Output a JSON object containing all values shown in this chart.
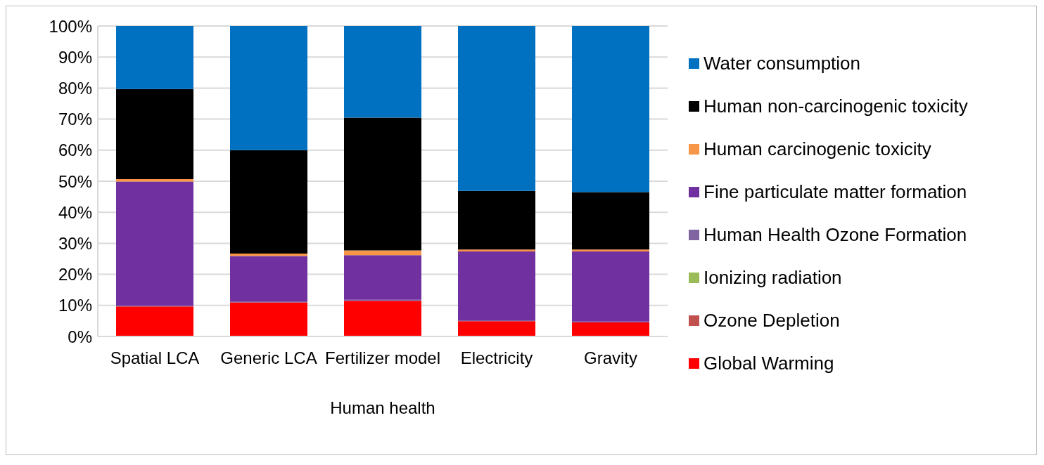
{
  "chart_data": {
    "type": "bar",
    "stacked": true,
    "xlabel": "Human health",
    "categories": [
      "Spatial LCA",
      "Generic LCA",
      "Fertilizer model",
      "Electricity",
      "Gravity"
    ],
    "series": [
      {
        "name": "Global Warming",
        "color": "#ff0000",
        "values": [
          9.7,
          11,
          11.5,
          4.9,
          4.5
        ]
      },
      {
        "name": "Ozone Depletion",
        "color": "#c0504d",
        "values": [
          0,
          0,
          0,
          0,
          0
        ]
      },
      {
        "name": "Ionizing radiation",
        "color": "#9bbb59",
        "values": [
          0,
          0,
          0,
          0,
          0
        ]
      },
      {
        "name": "Human Health Ozone Formation",
        "color": "#8064a2",
        "values": [
          0.2,
          0.3,
          0.3,
          0.3,
          0.3
        ]
      },
      {
        "name": "Fine particulate matter formation",
        "color": "#7030a0",
        "values": [
          40,
          14.6,
          14.4,
          22.2,
          22.6
        ]
      },
      {
        "name": "Human carcinogenic toxicity",
        "color": "#f79646",
        "values": [
          0.8,
          0.8,
          1.5,
          0.6,
          0.6
        ]
      },
      {
        "name": "Human non-carcinogenic toxicity",
        "color": "#000000",
        "values": [
          29,
          33.3,
          42.8,
          18.9,
          18.5
        ]
      },
      {
        "name": "Water consumption",
        "color": "#0070c0",
        "values": [
          20.3,
          40,
          29.5,
          53.1,
          53.5
        ]
      }
    ],
    "ylim": [
      0,
      100
    ],
    "yticks": [
      {
        "value": 0,
        "label": "0%"
      },
      {
        "value": 10,
        "label": "10%"
      },
      {
        "value": 20,
        "label": "20%"
      },
      {
        "value": 30,
        "label": "30%"
      },
      {
        "value": 40,
        "label": "40%"
      },
      {
        "value": 50,
        "label": "50%"
      },
      {
        "value": 60,
        "label": "60%"
      },
      {
        "value": 70,
        "label": "70%"
      },
      {
        "value": 80,
        "label": "80%"
      },
      {
        "value": 90,
        "label": "90%"
      },
      {
        "value": 100,
        "label": "100%"
      }
    ],
    "grid": "y",
    "legend": "right"
  }
}
